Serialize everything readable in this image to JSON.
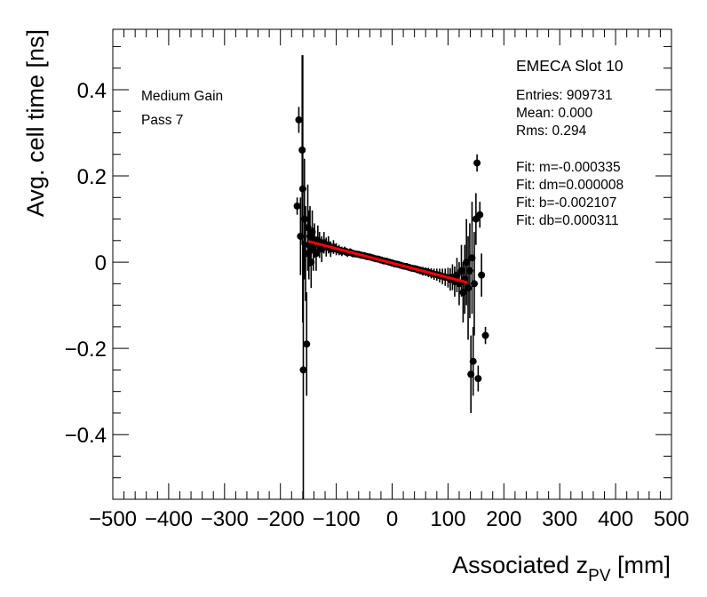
{
  "chart_data": {
    "type": "scatter",
    "xlabel_main": "Associated z",
    "xlabel_sub": "PV",
    "xlabel_unit": " [mm]",
    "ylabel": "Avg. cell time [ns]",
    "xlim": [
      -500,
      500
    ],
    "ylim": [
      -0.55,
      0.54
    ],
    "grid": false,
    "x_ticks": [
      -500,
      -400,
      -300,
      -200,
      -100,
      0,
      100,
      200,
      300,
      400,
      500
    ],
    "x_tick_labels": [
      "−500",
      "−400",
      "−300",
      "−200",
      "−100",
      "0",
      "100",
      "200",
      "300",
      "400",
      "500"
    ],
    "y_ticks": [
      -0.4,
      -0.2,
      0,
      0.2,
      0.4
    ],
    "y_tick_labels": [
      "−0.4",
      "−0.2",
      "0",
      "0.2",
      "0.4"
    ],
    "annotations_left": [
      "Medium Gain",
      "Pass 7"
    ],
    "stats_title": "EMECA Slot 10",
    "stats": [
      "Entries: 909731",
      "Mean: 0.000",
      "Rms: 0.294"
    ],
    "fit_stats": [
      "Fit: m=-0.000335",
      "Fit: dm=0.000008",
      "Fit: b=-0.002107",
      "Fit: db=0.000311"
    ],
    "fit": {
      "m": -0.000335,
      "b": -0.002107,
      "x_range": [
        -150,
        135
      ],
      "color": "#ff0000"
    },
    "points": [
      {
        "x": -170,
        "y": 0.13,
        "err": 0.02
      },
      {
        "x": -167,
        "y": 0.33,
        "err": 0.03
      },
      {
        "x": -164,
        "y": 0.06,
        "err": 0.09
      },
      {
        "x": -161,
        "y": 0.26,
        "err": 0.22
      },
      {
        "x": -160,
        "y": 0.17,
        "err": 0.31
      },
      {
        "x": -159,
        "y": -0.25,
        "err": 0.3
      },
      {
        "x": -157,
        "y": 0.1,
        "err": 0.14
      },
      {
        "x": -155,
        "y": 0.02,
        "err": 0.11
      },
      {
        "x": -153,
        "y": -0.19,
        "err": 0.12
      },
      {
        "x": -151,
        "y": 0.08,
        "err": 0.1
      },
      {
        "x": -149,
        "y": 0.04,
        "err": 0.08
      },
      {
        "x": -147,
        "y": 0.06,
        "err": 0.07
      },
      {
        "x": -145,
        "y": 0.0,
        "err": 0.06
      },
      {
        "x": -143,
        "y": 0.07,
        "err": 0.05
      },
      {
        "x": -141,
        "y": 0.03,
        "err": 0.05
      },
      {
        "x": -139,
        "y": 0.05,
        "err": 0.04
      },
      {
        "x": -136,
        "y": 0.02,
        "err": 0.04
      },
      {
        "x": -133,
        "y": 0.05,
        "err": 0.035
      },
      {
        "x": -130,
        "y": 0.04,
        "err": 0.03
      },
      {
        "x": -126,
        "y": 0.03,
        "err": 0.03
      },
      {
        "x": -122,
        "y": 0.045,
        "err": 0.025
      },
      {
        "x": -118,
        "y": 0.035,
        "err": 0.022
      },
      {
        "x": -114,
        "y": 0.04,
        "err": 0.02
      },
      {
        "x": -110,
        "y": 0.03,
        "err": 0.018
      },
      {
        "x": -105,
        "y": 0.035,
        "err": 0.016
      },
      {
        "x": -100,
        "y": 0.03,
        "err": 0.014
      },
      {
        "x": -95,
        "y": 0.028,
        "err": 0.012
      },
      {
        "x": -90,
        "y": 0.025,
        "err": 0.011
      },
      {
        "x": -85,
        "y": 0.026,
        "err": 0.01
      },
      {
        "x": -80,
        "y": 0.022,
        "err": 0.01
      },
      {
        "x": -75,
        "y": 0.023,
        "err": 0.009
      },
      {
        "x": -70,
        "y": 0.02,
        "err": 0.009
      },
      {
        "x": -65,
        "y": 0.019,
        "err": 0.008
      },
      {
        "x": -60,
        "y": 0.018,
        "err": 0.008
      },
      {
        "x": -55,
        "y": 0.016,
        "err": 0.008
      },
      {
        "x": -50,
        "y": 0.015,
        "err": 0.007
      },
      {
        "x": -45,
        "y": 0.013,
        "err": 0.007
      },
      {
        "x": -40,
        "y": 0.012,
        "err": 0.007
      },
      {
        "x": -35,
        "y": 0.01,
        "err": 0.007
      },
      {
        "x": -30,
        "y": 0.008,
        "err": 0.007
      },
      {
        "x": -25,
        "y": 0.007,
        "err": 0.007
      },
      {
        "x": -20,
        "y": 0.005,
        "err": 0.007
      },
      {
        "x": -15,
        "y": 0.003,
        "err": 0.007
      },
      {
        "x": -10,
        "y": 0.002,
        "err": 0.007
      },
      {
        "x": -5,
        "y": 0.0,
        "err": 0.007
      },
      {
        "x": 0,
        "y": -0.002,
        "err": 0.007
      },
      {
        "x": 5,
        "y": -0.004,
        "err": 0.007
      },
      {
        "x": 10,
        "y": -0.005,
        "err": 0.007
      },
      {
        "x": 15,
        "y": -0.007,
        "err": 0.007
      },
      {
        "x": 20,
        "y": -0.009,
        "err": 0.007
      },
      {
        "x": 25,
        "y": -0.01,
        "err": 0.007
      },
      {
        "x": 30,
        "y": -0.012,
        "err": 0.008
      },
      {
        "x": 35,
        "y": -0.014,
        "err": 0.008
      },
      {
        "x": 40,
        "y": -0.015,
        "err": 0.008
      },
      {
        "x": 45,
        "y": -0.017,
        "err": 0.009
      },
      {
        "x": 50,
        "y": -0.019,
        "err": 0.009
      },
      {
        "x": 55,
        "y": -0.021,
        "err": 0.01
      },
      {
        "x": 60,
        "y": -0.022,
        "err": 0.01
      },
      {
        "x": 65,
        "y": -0.024,
        "err": 0.011
      },
      {
        "x": 70,
        "y": -0.026,
        "err": 0.012
      },
      {
        "x": 75,
        "y": -0.028,
        "err": 0.013
      },
      {
        "x": 80,
        "y": -0.029,
        "err": 0.014
      },
      {
        "x": 85,
        "y": -0.031,
        "err": 0.016
      },
      {
        "x": 90,
        "y": -0.033,
        "err": 0.018
      },
      {
        "x": 95,
        "y": -0.035,
        "err": 0.02
      },
      {
        "x": 100,
        "y": -0.036,
        "err": 0.023
      },
      {
        "x": 104,
        "y": -0.04,
        "err": 0.026
      },
      {
        "x": 108,
        "y": -0.035,
        "err": 0.03
      },
      {
        "x": 112,
        "y": -0.045,
        "err": 0.035
      },
      {
        "x": 116,
        "y": -0.03,
        "err": 0.04
      },
      {
        "x": 120,
        "y": -0.05,
        "err": 0.05
      },
      {
        "x": 124,
        "y": -0.02,
        "err": 0.06
      },
      {
        "x": 127,
        "y": -0.07,
        "err": 0.07
      },
      {
        "x": 130,
        "y": -0.04,
        "err": 0.08
      },
      {
        "x": 133,
        "y": 0.0,
        "err": 0.1
      },
      {
        "x": 136,
        "y": -0.06,
        "err": 0.12
      },
      {
        "x": 139,
        "y": -0.02,
        "err": 0.11
      },
      {
        "x": 141,
        "y": -0.26,
        "err": 0.09
      },
      {
        "x": 143,
        "y": 0.01,
        "err": 0.13
      },
      {
        "x": 145,
        "y": -0.23,
        "err": 0.08
      },
      {
        "x": 147,
        "y": -0.05,
        "err": 0.12
      },
      {
        "x": 150,
        "y": 0.1,
        "err": 0.06
      },
      {
        "x": 152,
        "y": 0.23,
        "err": 0.02
      },
      {
        "x": 154,
        "y": -0.27,
        "err": 0.03
      },
      {
        "x": 157,
        "y": 0.11,
        "err": 0.03
      },
      {
        "x": 160,
        "y": -0.03,
        "err": 0.05
      },
      {
        "x": 167,
        "y": -0.17,
        "err": 0.02
      }
    ]
  }
}
